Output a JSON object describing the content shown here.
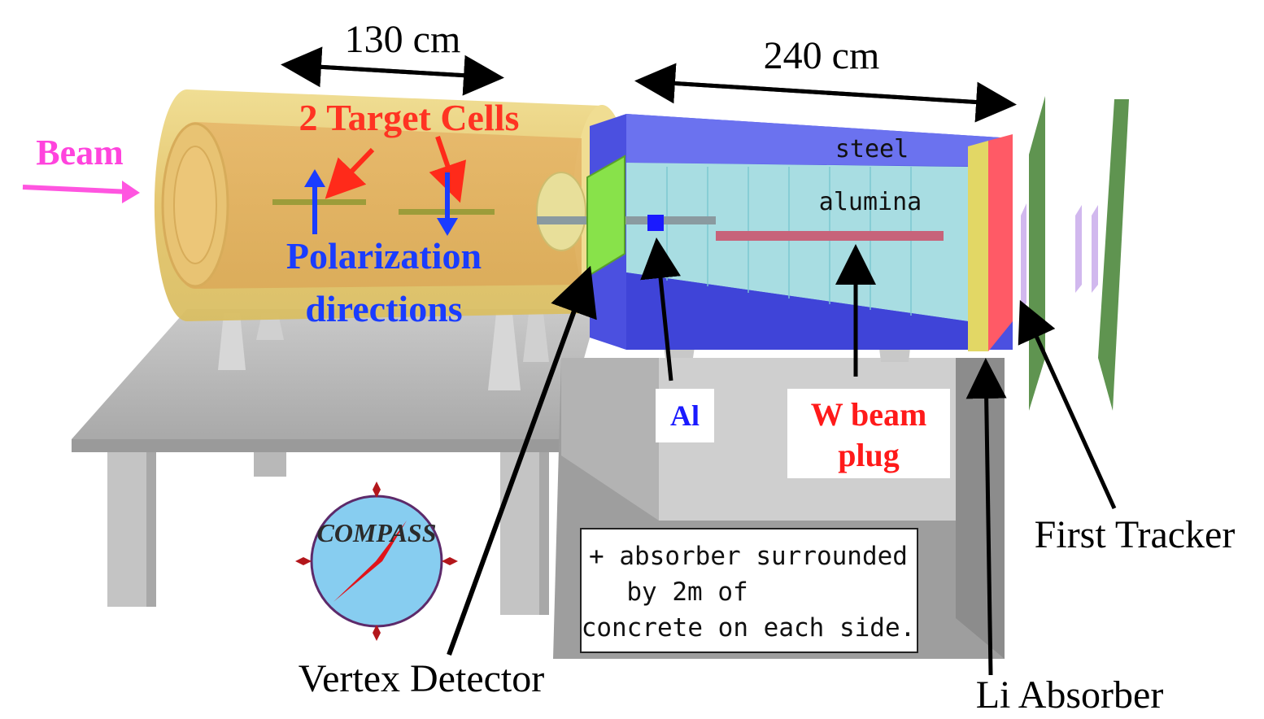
{
  "dimensions": {
    "target_length": "130 cm",
    "absorber_length": "240 cm"
  },
  "labels": {
    "beam": "Beam",
    "target_cells": "2 Target Cells",
    "polarization_line1": "Polarization",
    "polarization_line2": "directions",
    "steel": "steel",
    "alumina": "alumina",
    "al": "Al",
    "w_plug_line1": "W beam",
    "w_plug_line2": "plug",
    "vertex_detector": "Vertex Detector",
    "li_absorber": "Li Absorber",
    "first_tracker": "First Tracker",
    "logo_text": "COMPASS"
  },
  "note": {
    "line1": "+ absorber surrounded",
    "line2": "by 2m of",
    "line3": "concrete on each side."
  },
  "colors": {
    "beam_label": "#ff44dd",
    "target_label": "#ff3322",
    "polarization_label": "#1a3cff",
    "al_label": "#1a1aff",
    "w_label": "#ff1a1a",
    "magnet": "#e9cf78",
    "absorber_blue": "#4a4ee0",
    "alumina": "#a6dbe0",
    "tracker": "#5f9450",
    "vertex": "#88e24a",
    "li_absorber": "#ff5a66"
  }
}
